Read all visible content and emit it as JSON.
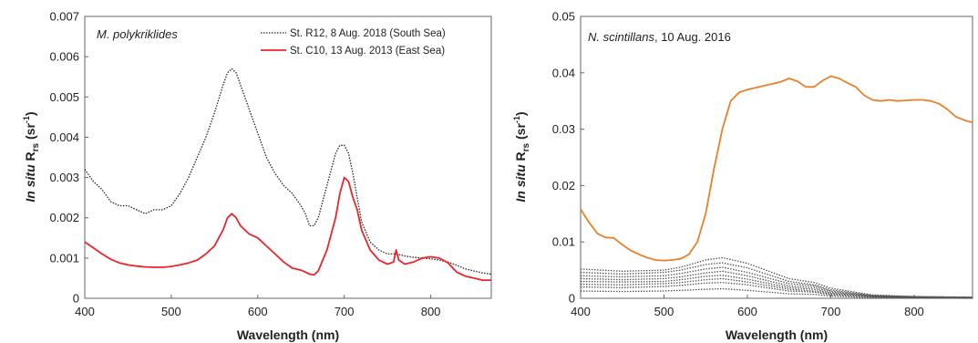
{
  "chart_data": [
    {
      "type": "line",
      "xlabel": "Wavelength (nm)",
      "ylabel_italic": "In situ",
      "ylabel_main": "R",
      "ylabel_sub": "rs",
      "ylabel_unit_open": "(sr",
      "ylabel_unit_sup": "-1",
      "ylabel_unit_close": ")",
      "xlim": [
        400,
        870
      ],
      "ylim": [
        0,
        0.007
      ],
      "xticks": [
        400,
        500,
        600,
        700,
        800
      ],
      "xtick_labels": [
        "400",
        "500",
        "600",
        "700",
        "800"
      ],
      "yticks": [
        0,
        0.001,
        0.002,
        0.003,
        0.004,
        0.005,
        0.006,
        0.007
      ],
      "ytick_labels": [
        "0",
        "0.001",
        "0.002",
        "0.003",
        "0.004",
        "0.005",
        "0.006",
        "0.007"
      ],
      "annotation_italic": "M. polykriklides",
      "annotation_rest": "",
      "legend_position": "top-right",
      "series": [
        {
          "name": "St. R12, 8 Aug. 2018 (South Sea)",
          "color": "#222222",
          "style": "dotted",
          "x": [
            400,
            410,
            420,
            430,
            440,
            450,
            460,
            470,
            480,
            490,
            500,
            510,
            520,
            530,
            540,
            550,
            560,
            565,
            570,
            575,
            580,
            590,
            600,
            610,
            620,
            630,
            640,
            650,
            655,
            660,
            665,
            670,
            680,
            690,
            695,
            700,
            705,
            710,
            715,
            720,
            730,
            740,
            750,
            760,
            770,
            780,
            790,
            800,
            810,
            820,
            830,
            840,
            850,
            860,
            870
          ],
          "y": [
            0.0032,
            0.0029,
            0.0027,
            0.0024,
            0.0023,
            0.0023,
            0.0022,
            0.0021,
            0.0022,
            0.0022,
            0.0023,
            0.0026,
            0.003,
            0.0035,
            0.004,
            0.0046,
            0.0053,
            0.0056,
            0.0057,
            0.0056,
            0.0053,
            0.0047,
            0.0041,
            0.0035,
            0.0031,
            0.0028,
            0.0026,
            0.0023,
            0.0021,
            0.0018,
            0.0018,
            0.002,
            0.0028,
            0.0036,
            0.0038,
            0.0038,
            0.0036,
            0.0031,
            0.0025,
            0.0019,
            0.0014,
            0.0012,
            0.0011,
            0.0011,
            0.00105,
            0.00102,
            0.001,
            0.00098,
            0.00095,
            0.0009,
            0.00082,
            0.00073,
            0.00068,
            0.00063,
            0.0006
          ]
        },
        {
          "name": "St. C10, 13 Aug. 2013 (East Sea)",
          "color": "#e8262b",
          "style": "solid",
          "x": [
            400,
            410,
            420,
            430,
            440,
            450,
            460,
            470,
            480,
            490,
            500,
            510,
            520,
            530,
            540,
            550,
            560,
            565,
            570,
            575,
            580,
            590,
            600,
            610,
            620,
            630,
            640,
            650,
            655,
            660,
            665,
            670,
            680,
            690,
            695,
            700,
            705,
            710,
            715,
            720,
            730,
            740,
            750,
            757,
            760,
            763,
            770,
            780,
            790,
            800,
            810,
            820,
            830,
            840,
            850,
            860,
            870
          ],
          "y": [
            0.0014,
            0.00125,
            0.0011,
            0.00097,
            0.00088,
            0.00083,
            0.0008,
            0.00078,
            0.00077,
            0.00077,
            0.00079,
            0.00083,
            0.00088,
            0.00095,
            0.0011,
            0.0013,
            0.0017,
            0.002,
            0.0021,
            0.002,
            0.0018,
            0.0016,
            0.0015,
            0.0013,
            0.0011,
            0.0009,
            0.00075,
            0.0007,
            0.00065,
            0.0006,
            0.00058,
            0.00068,
            0.0012,
            0.002,
            0.0026,
            0.003,
            0.0029,
            0.0025,
            0.0022,
            0.0017,
            0.0012,
            0.00095,
            0.00085,
            0.0009,
            0.0012,
            0.00095,
            0.00085,
            0.0009,
            0.001,
            0.00103,
            0.001,
            0.00088,
            0.00065,
            0.00055,
            0.0005,
            0.00045,
            0.00045
          ]
        }
      ]
    },
    {
      "type": "line",
      "xlabel": "Wavelength (nm)",
      "ylabel_italic": "In situ",
      "ylabel_main": "R",
      "ylabel_sub": "rs",
      "ylabel_unit_open": "(sr",
      "ylabel_unit_sup": "-1",
      "ylabel_unit_close": ")",
      "xlim": [
        400,
        870
      ],
      "ylim": [
        0,
        0.05
      ],
      "xticks": [
        400,
        500,
        600,
        700,
        800
      ],
      "xtick_labels": [
        "400",
        "500",
        "600",
        "700",
        "800"
      ],
      "yticks": [
        0,
        0.01,
        0.02,
        0.03,
        0.04,
        0.05
      ],
      "ytick_labels": [
        "0",
        "0.01",
        "0.02",
        "0.03",
        "0.04",
        "0.05"
      ],
      "annotation_italic": "N. scintillans",
      "annotation_rest": ", 10 Aug. 2016",
      "series": [
        {
          "color": "#e8812a",
          "style": "solid",
          "x": [
            400,
            410,
            420,
            430,
            440,
            450,
            460,
            470,
            480,
            490,
            500,
            510,
            520,
            530,
            540,
            550,
            560,
            570,
            580,
            590,
            600,
            620,
            640,
            650,
            660,
            670,
            680,
            690,
            700,
            710,
            720,
            730,
            740,
            750,
            760,
            770,
            780,
            790,
            800,
            810,
            820,
            830,
            840,
            850,
            860,
            870
          ],
          "y": [
            0.0158,
            0.0135,
            0.0115,
            0.0108,
            0.0107,
            0.0095,
            0.0085,
            0.0078,
            0.0072,
            0.0068,
            0.0067,
            0.0068,
            0.007,
            0.0078,
            0.01,
            0.015,
            0.023,
            0.03,
            0.035,
            0.0365,
            0.037,
            0.0377,
            0.0384,
            0.039,
            0.0385,
            0.0375,
            0.0375,
            0.0386,
            0.0394,
            0.039,
            0.0382,
            0.0375,
            0.036,
            0.0352,
            0.035,
            0.0352,
            0.035,
            0.0351,
            0.0352,
            0.0352,
            0.035,
            0.0345,
            0.0335,
            0.0322,
            0.0316,
            0.0312
          ]
        },
        {
          "color": "#555555",
          "style": "dotted",
          "x": [
            400,
            450,
            500,
            520,
            550,
            570,
            600,
            650,
            680,
            700,
            750,
            800,
            870
          ],
          "y": [
            0.0052,
            0.0048,
            0.005,
            0.0055,
            0.0068,
            0.0072,
            0.0062,
            0.0035,
            0.0028,
            0.0018,
            0.0006,
            0.0003,
            0.0002
          ]
        },
        {
          "color": "#555555",
          "style": "dotted",
          "x": [
            400,
            450,
            500,
            520,
            550,
            570,
            600,
            650,
            680,
            700,
            750,
            800,
            870
          ],
          "y": [
            0.0046,
            0.0043,
            0.0046,
            0.005,
            0.006,
            0.0063,
            0.0054,
            0.003,
            0.0024,
            0.0015,
            0.0005,
            0.0003,
            0.0002
          ]
        },
        {
          "color": "#555555",
          "style": "dotted",
          "x": [
            400,
            450,
            500,
            520,
            550,
            570,
            600,
            650,
            680,
            700,
            750,
            800,
            870
          ],
          "y": [
            0.004,
            0.0038,
            0.004,
            0.0044,
            0.0052,
            0.0055,
            0.0046,
            0.0026,
            0.0022,
            0.0013,
            0.0004,
            0.0002,
            0.0001
          ]
        },
        {
          "color": "#555555",
          "style": "dotted",
          "x": [
            400,
            450,
            500,
            520,
            550,
            570,
            600,
            650,
            680,
            700,
            750,
            800,
            870
          ],
          "y": [
            0.0035,
            0.0033,
            0.0035,
            0.0038,
            0.0045,
            0.0048,
            0.004,
            0.0022,
            0.0019,
            0.0011,
            0.0004,
            0.0002,
            0.0001
          ]
        },
        {
          "color": "#555555",
          "style": "dotted",
          "x": [
            400,
            450,
            500,
            520,
            550,
            570,
            600,
            650,
            680,
            700,
            750,
            800,
            870
          ],
          "y": [
            0.003,
            0.0029,
            0.003,
            0.0033,
            0.0039,
            0.0041,
            0.0034,
            0.0019,
            0.0016,
            0.0009,
            0.0003,
            0.0002,
            0.0001
          ]
        },
        {
          "color": "#555555",
          "style": "dotted",
          "x": [
            400,
            450,
            500,
            520,
            550,
            570,
            600,
            650,
            680,
            700,
            750,
            800,
            870
          ],
          "y": [
            0.0025,
            0.0024,
            0.0026,
            0.0028,
            0.0033,
            0.0035,
            0.0029,
            0.0016,
            0.0013,
            0.0008,
            0.0003,
            0.0001,
            0.0001
          ]
        },
        {
          "color": "#555555",
          "style": "dotted",
          "x": [
            400,
            450,
            500,
            520,
            550,
            570,
            600,
            650,
            680,
            700,
            750,
            800,
            870
          ],
          "y": [
            0.002,
            0.0019,
            0.0021,
            0.0023,
            0.0027,
            0.0028,
            0.0024,
            0.0013,
            0.0011,
            0.0006,
            0.0002,
            0.0001,
            0.0001
          ]
        },
        {
          "color": "#555555",
          "style": "dotted",
          "x": [
            400,
            450,
            500,
            520,
            550,
            570,
            600,
            650,
            680,
            700,
            750,
            800,
            870
          ],
          "y": [
            0.0013,
            0.0012,
            0.0013,
            0.0014,
            0.0016,
            0.0017,
            0.0014,
            0.0008,
            0.0007,
            0.0004,
            0.0001,
            0.0001,
            0.0
          ]
        }
      ]
    }
  ]
}
